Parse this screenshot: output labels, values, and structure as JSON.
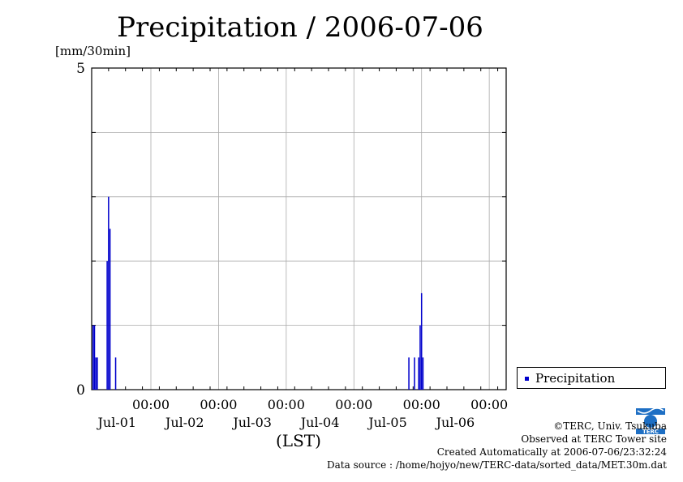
{
  "chart_data": {
    "type": "bar",
    "title": "Precipitation / 2006-07-06",
    "ylabel": "[mm/30min]",
    "xlabel": "(LST)",
    "ylim": [
      0,
      5
    ],
    "y_ticks": [
      "0",
      "5"
    ],
    "x_ticks": [
      {
        "time": "00:00",
        "date": "Jul-01"
      },
      {
        "time": "00:00",
        "date": "Jul-02"
      },
      {
        "time": "00:00",
        "date": "Jul-03"
      },
      {
        "time": "00:00",
        "date": "Jul-04"
      },
      {
        "time": "00:00",
        "date": "Jul-05"
      },
      {
        "time": "00:00",
        "date": "Jul-06"
      }
    ],
    "xlim": [
      "2006-06-30 03:00",
      "2006-07-06 06:00"
    ],
    "grid": true,
    "legend": "bottom-right",
    "color": "#0000cc",
    "series": [
      {
        "name": "Precipitation",
        "points": [
          {
            "t": "2006-06-30 03:30",
            "v": 1.0
          },
          {
            "t": "2006-06-30 04:00",
            "v": 1.0
          },
          {
            "t": "2006-06-30 04:30",
            "v": 0.5
          },
          {
            "t": "2006-06-30 05:00",
            "v": 0.5
          },
          {
            "t": "2006-06-30 08:30",
            "v": 2.0
          },
          {
            "t": "2006-06-30 09:00",
            "v": 3.0
          },
          {
            "t": "2006-06-30 09:30",
            "v": 2.5
          },
          {
            "t": "2006-06-30 11:30",
            "v": 0.5
          },
          {
            "t": "2006-07-04 19:30",
            "v": 0.5
          },
          {
            "t": "2006-07-04 21:30",
            "v": 0.5
          },
          {
            "t": "2006-07-04 23:00",
            "v": 0.5
          },
          {
            "t": "2006-07-04 23:30",
            "v": 1.0
          },
          {
            "t": "2006-07-05 00:00",
            "v": 1.5
          },
          {
            "t": "2006-07-05 00:30",
            "v": 0.5
          }
        ]
      }
    ]
  },
  "credits": {
    "copyright": "©TERC, Univ. Tsukuba",
    "observed": "Observed at TERC Tower site",
    "created": "Created Automatically at 2006-07-06/23:32:24",
    "source": "Data source : /home/hojyo/new/TERC-data/sorted_data/MET.30m.dat"
  },
  "logo": {
    "text": "TERC"
  }
}
